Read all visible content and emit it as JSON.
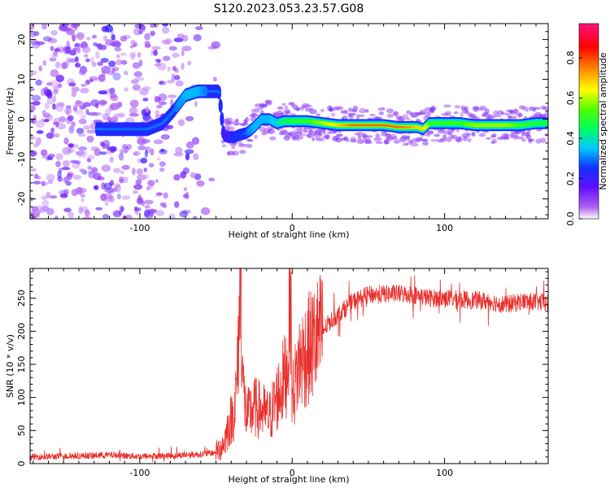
{
  "chart_data": [
    {
      "type": "heatmap",
      "title": "S120.2023.053.23.57.G08",
      "xlabel": "Height of straight line (km)",
      "ylabel": "Frequency (Hz)",
      "xlim": [
        -172,
        168
      ],
      "ylim": [
        -25,
        24
      ],
      "xticks": [
        -100,
        0,
        100
      ],
      "xtick_labels": [
        "-100",
        "0",
        "100"
      ],
      "yticks": [
        -20,
        -10,
        0,
        10,
        20
      ],
      "ytick_labels": [
        "-20",
        "-10",
        "0",
        "10",
        "20"
      ],
      "grid": false,
      "colorbar": {
        "label": "Normalized spectral amplitude",
        "range": [
          0,
          0.97
        ],
        "ticks": [
          0.0,
          0.2,
          0.4,
          0.6,
          0.8
        ],
        "tick_labels": [
          "0.0",
          "0.2",
          "0.4",
          "0.6",
          "0.8"
        ],
        "colors": [
          "#ffffff",
          "#a020f0",
          "#3000ff",
          "#00d0ff",
          "#00ff40",
          "#ffff00",
          "#ff8000",
          "#ff0000",
          "#ff1080"
        ]
      },
      "ridge": {
        "x": [
          -125,
          -110,
          -95,
          -85,
          -78,
          -70,
          -62,
          -55,
          -48,
          -45,
          -42,
          -38,
          -35,
          -30,
          -25,
          -20,
          -15,
          -10,
          -5,
          0,
          10,
          20,
          30,
          40,
          50,
          60,
          70,
          78,
          82,
          86,
          90,
          100,
          110,
          120,
          130,
          140,
          150,
          160,
          168
        ],
        "y": [
          -2.5,
          -2.5,
          -2.5,
          -1,
          2,
          6,
          7,
          7,
          7,
          -4,
          -4.5,
          -4.5,
          -4,
          -3.5,
          -2,
          0,
          0,
          -1,
          -0.5,
          -0.5,
          -0.5,
          -1,
          -1.5,
          -1.5,
          -1.5,
          -1.5,
          -2,
          -2,
          -2,
          -2.5,
          -1,
          -1,
          -1,
          -1.5,
          -1.5,
          -1.5,
          -1.5,
          -1,
          -1
        ],
        "amplitude": [
          0.3,
          0.3,
          0.3,
          0.3,
          0.3,
          0.35,
          0.35,
          0.3,
          0.3,
          0.2,
          0.2,
          0.25,
          0.25,
          0.3,
          0.35,
          0.35,
          0.35,
          0.4,
          0.45,
          0.5,
          0.55,
          0.6,
          0.7,
          0.8,
          0.8,
          0.8,
          0.8,
          0.75,
          0.7,
          0.7,
          0.55,
          0.55,
          0.55,
          0.6,
          0.6,
          0.6,
          0.55,
          0.5,
          0.5
        ]
      },
      "noise_region_x": [
        -172,
        -45
      ]
    },
    {
      "type": "line",
      "xlabel": "Height of straight line (km)",
      "ylabel": "SNR (10 * v/v)",
      "xlim": [
        -172,
        168
      ],
      "ylim": [
        0,
        295
      ],
      "xticks": [
        -100,
        0,
        100
      ],
      "xtick_labels": [
        "-100",
        "0",
        "100"
      ],
      "yticks": [
        0,
        50,
        100,
        150,
        200,
        250
      ],
      "ytick_labels": [
        "0",
        "50",
        "100",
        "150",
        "200",
        "250"
      ],
      "grid": false,
      "color": "#e8302c",
      "series": [
        {
          "x": [
            -172,
            -150,
            -120,
            -100,
            -80,
            -60,
            -50,
            -45,
            -42,
            -38,
            -36,
            -34,
            -32,
            -30,
            -25,
            -20,
            -15,
            -10,
            -5,
            -3,
            -1,
            0,
            1,
            3,
            5,
            10,
            15,
            20,
            25,
            30,
            40,
            50,
            60,
            70,
            80,
            90,
            100,
            110,
            120,
            130,
            140,
            150,
            160,
            168
          ],
          "y": [
            10,
            11,
            13,
            11,
            12,
            14,
            17,
            30,
            55,
            80,
            130,
            290,
            110,
            70,
            85,
            80,
            70,
            100,
            130,
            150,
            265,
            100,
            110,
            135,
            155,
            170,
            185,
            200,
            215,
            225,
            245,
            255,
            256,
            257,
            255,
            250,
            250,
            248,
            247,
            245,
            240,
            245,
            245,
            242
          ]
        }
      ]
    }
  ]
}
